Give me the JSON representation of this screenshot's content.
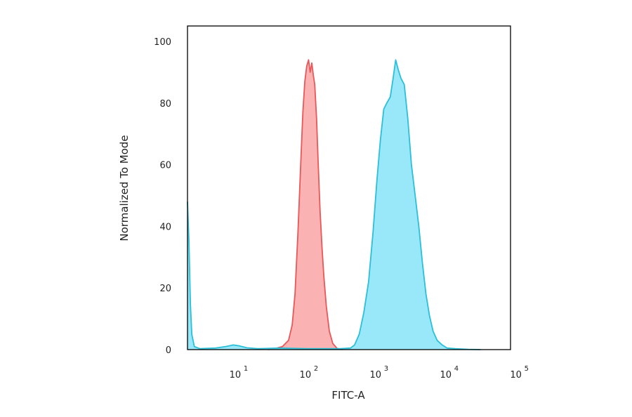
{
  "chart_data": {
    "type": "area",
    "xlabel": "FITC-A",
    "ylabel": "Normalized To Mode",
    "x_scale": "log",
    "xlim": [
      2,
      80000
    ],
    "ylim": [
      0,
      105
    ],
    "x_ticks": [
      {
        "value": 10,
        "base": "10",
        "exp": "1"
      },
      {
        "value": 100,
        "base": "10",
        "exp": "2"
      },
      {
        "value": 1000,
        "base": "10",
        "exp": "3"
      },
      {
        "value": 10000,
        "base": "10",
        "exp": "4"
      },
      {
        "value": 100000,
        "base": "10",
        "exp": "5"
      }
    ],
    "y_ticks": [
      0,
      20,
      40,
      60,
      80,
      100
    ],
    "grid": false,
    "legend": "none",
    "series": [
      {
        "color": "#e8585a",
        "fill": "#fbaaaa",
        "points": [
          [
            28,
            0
          ],
          [
            35,
            0.3
          ],
          [
            45,
            1
          ],
          [
            55,
            3
          ],
          [
            62,
            8
          ],
          [
            68,
            18
          ],
          [
            75,
            38
          ],
          [
            82,
            60
          ],
          [
            88,
            77
          ],
          [
            94,
            87
          ],
          [
            100,
            92
          ],
          [
            106,
            94
          ],
          [
            112,
            90
          ],
          [
            118,
            93
          ],
          [
            124,
            89
          ],
          [
            130,
            86
          ],
          [
            138,
            75
          ],
          [
            146,
            60
          ],
          [
            155,
            45
          ],
          [
            165,
            33
          ],
          [
            175,
            24
          ],
          [
            190,
            14
          ],
          [
            210,
            6
          ],
          [
            235,
            2
          ],
          [
            270,
            0.4
          ],
          [
            320,
            0
          ]
        ]
      },
      {
        "color": "#2bbfd8",
        "fill": "#8ee6f8",
        "points": [
          [
            2,
            48
          ],
          [
            2.1,
            35
          ],
          [
            2.2,
            15
          ],
          [
            2.3,
            5
          ],
          [
            2.5,
            1
          ],
          [
            3,
            0.3
          ],
          [
            5,
            0.5
          ],
          [
            7,
            1
          ],
          [
            9,
            1.5
          ],
          [
            11,
            1.2
          ],
          [
            14,
            0.6
          ],
          [
            20,
            0.3
          ],
          [
            40,
            0.5
          ],
          [
            100,
            0.3
          ],
          [
            300,
            0.3
          ],
          [
            420,
            0.5
          ],
          [
            480,
            1.5
          ],
          [
            560,
            5
          ],
          [
            650,
            12
          ],
          [
            760,
            22
          ],
          [
            880,
            38
          ],
          [
            1000,
            55
          ],
          [
            1120,
            68
          ],
          [
            1250,
            78
          ],
          [
            1380,
            80
          ],
          [
            1550,
            82
          ],
          [
            1700,
            88
          ],
          [
            1850,
            94
          ],
          [
            2000,
            91
          ],
          [
            2200,
            88
          ],
          [
            2450,
            86
          ],
          [
            2750,
            75
          ],
          [
            3100,
            60
          ],
          [
            3500,
            50
          ],
          [
            3950,
            40
          ],
          [
            4450,
            28
          ],
          [
            5000,
            18
          ],
          [
            5600,
            11
          ],
          [
            6300,
            6
          ],
          [
            7200,
            3
          ],
          [
            8500,
            1.5
          ],
          [
            10000,
            0.5
          ],
          [
            13000,
            0.3
          ],
          [
            20000,
            0.1
          ],
          [
            30000,
            0
          ]
        ]
      }
    ]
  }
}
